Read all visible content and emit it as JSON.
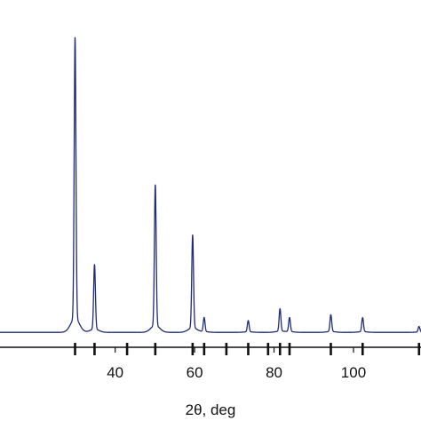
{
  "chart_data": {
    "type": "line",
    "title": "",
    "xlabel": "2θ, deg",
    "ylabel": "",
    "xlim": [
      11,
      117
    ],
    "ylim": [
      0,
      100
    ],
    "grid": false,
    "x_ticks": [
      40,
      60,
      80,
      100
    ],
    "x_tick_labels": [
      "40",
      "60",
      "80",
      "100"
    ],
    "series": [
      {
        "line_color": "#1f2a78",
        "baseline": 1.2,
        "peak_width": 0.22,
        "peaks": [
          {
            "x": 29.9,
            "y": 100
          },
          {
            "x": 34.8,
            "y": 23
          },
          {
            "x": 50.1,
            "y": 50
          },
          {
            "x": 59.5,
            "y": 33
          },
          {
            "x": 62.4,
            "y": 5
          },
          {
            "x": 73.5,
            "y": 4
          },
          {
            "x": 81.5,
            "y": 8
          },
          {
            "x": 83.9,
            "y": 5
          },
          {
            "x": 94.3,
            "y": 6
          },
          {
            "x": 102.3,
            "y": 5
          },
          {
            "x": 116.5,
            "y": 2
          }
        ]
      }
    ],
    "reference_positions": [
      29.9,
      34.8,
      43.0,
      50.1,
      59.5,
      62.4,
      68.0,
      73.5,
      78.5,
      81.5,
      83.9,
      94.3,
      102.3,
      116.5
    ]
  }
}
